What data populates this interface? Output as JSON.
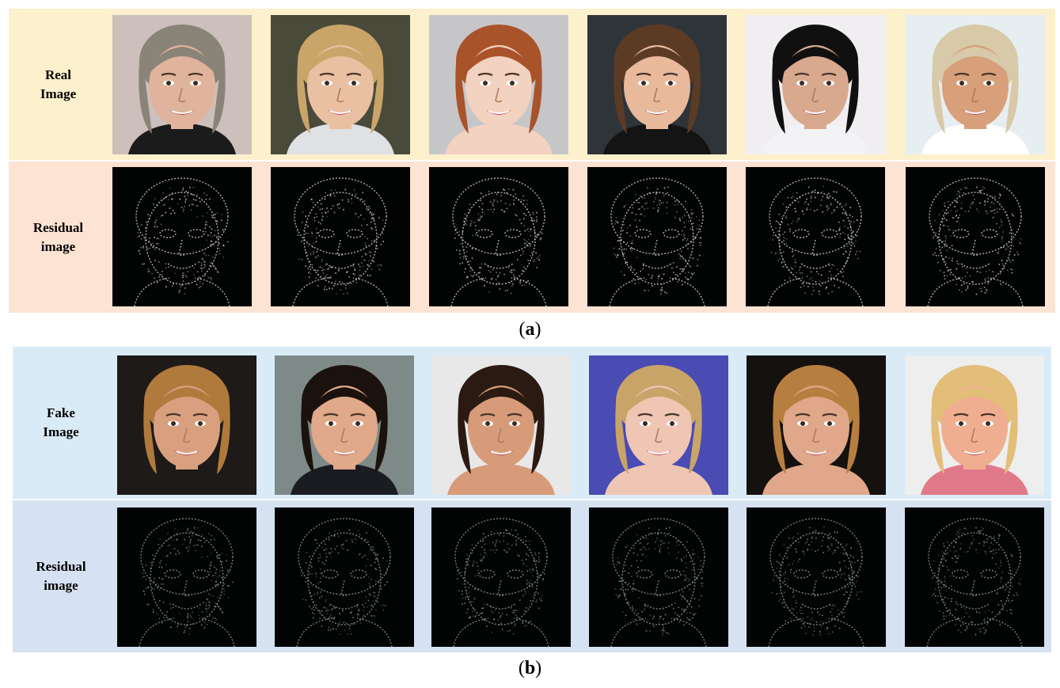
{
  "panel_a": {
    "caption_open": "(",
    "caption_letter": "a",
    "caption_close": ")",
    "rows": [
      {
        "label_line1": "Real",
        "label_line2": "Image",
        "background": "#fdf0cc",
        "kind": "photo"
      },
      {
        "label_line1": "Residual",
        "label_line2": "image",
        "background": "#fde3d3",
        "kind": "residual"
      }
    ],
    "residual_tint": "#c9c9c9",
    "faces": [
      {
        "skin": "#e0b49c",
        "hair": "#8a8378",
        "bg": "#cdbfbc",
        "cloth": "#1b1b1b"
      },
      {
        "skin": "#eac0a2",
        "hair": "#c9a56a",
        "bg": "#4a4a3a",
        "cloth": "#dfe1e4"
      },
      {
        "skin": "#f2d2c0",
        "hair": "#a9532b",
        "bg": "#c6c6c8",
        "cloth": "#f2d2c0"
      },
      {
        "skin": "#e9b99c",
        "hair": "#5c3b25",
        "bg": "#2f3439",
        "cloth": "#141414"
      },
      {
        "skin": "#d9a98f",
        "hair": "#101010",
        "bg": "#f1eef2",
        "cloth": "#f3f3f6"
      },
      {
        "skin": "#d7a07a",
        "hair": "#d8c9a8",
        "bg": "#e7eef1",
        "cloth": "#ffffff"
      }
    ]
  },
  "panel_b": {
    "caption_open": "(",
    "caption_letter": "b",
    "caption_close": ")",
    "rows": [
      {
        "label_line1": "Fake",
        "label_line2": "Image",
        "background": "#d9ebf6",
        "kind": "photo"
      },
      {
        "label_line1": "Residual",
        "label_line2": "image",
        "background": "#d6e2f2",
        "kind": "residual"
      }
    ],
    "residual_tint": "#7f9a86",
    "faces": [
      {
        "skin": "#d9a080",
        "hair": "#b07a3c",
        "bg": "#1e1a18",
        "cloth": "#1e1a18"
      },
      {
        "skin": "#dfa98a",
        "hair": "#1b120d",
        "bg": "#7d8a88",
        "cloth": "#1a1c22"
      },
      {
        "skin": "#d79b7a",
        "hair": "#2a1a12",
        "bg": "#e8e8e8",
        "cloth": "#d79b7a"
      },
      {
        "skin": "#efc6b4",
        "hair": "#c9a468",
        "bg": "#4a4bb3",
        "cloth": "#efc6b4"
      },
      {
        "skin": "#e0a78a",
        "hair": "#b77f3f",
        "bg": "#15110f",
        "cloth": "#e0a78a"
      },
      {
        "skin": "#f0ae90",
        "hair": "#e3be79",
        "bg": "#eeeeee",
        "cloth": "#e07a8a"
      }
    ]
  }
}
